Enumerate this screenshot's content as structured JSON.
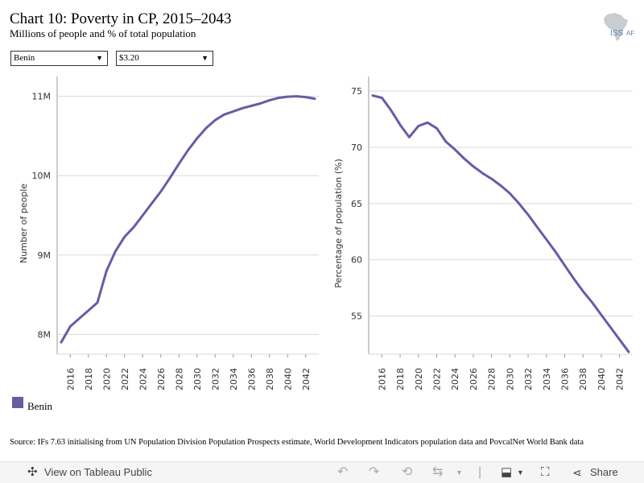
{
  "header": {
    "title": "Chart 10: Poverty in CP, 2015–2043",
    "subtitle": "Millions of people and % of total population"
  },
  "logo": {
    "text": "ISS",
    "suffix": "AF",
    "icon": "africa-map-icon"
  },
  "filters": {
    "country": {
      "selected": "Benin"
    },
    "poverty_line": {
      "selected": "$3.20"
    }
  },
  "colors": {
    "series": "#6b5aa5",
    "axis": "#999999",
    "grid": "#d9d9d9"
  },
  "chart_data": [
    {
      "type": "line",
      "xlabel": "",
      "ylabel": "Number of people",
      "x": [
        2015,
        2016,
        2017,
        2018,
        2019,
        2020,
        2021,
        2022,
        2023,
        2024,
        2025,
        2026,
        2027,
        2028,
        2029,
        2030,
        2031,
        2032,
        2033,
        2034,
        2035,
        2036,
        2037,
        2038,
        2039,
        2040,
        2041,
        2042,
        2043
      ],
      "xticks": [
        "2016",
        "2018",
        "2020",
        "2022",
        "2024",
        "2026",
        "2028",
        "2030",
        "2032",
        "2034",
        "2036",
        "2038",
        "2040",
        "2042"
      ],
      "yticks": [
        {
          "value": 8,
          "label": "8M"
        },
        {
          "value": 9,
          "label": "9M"
        },
        {
          "value": 10,
          "label": "10M"
        },
        {
          "value": 11,
          "label": "11M"
        }
      ],
      "ylim": [
        7.75,
        11.25
      ],
      "series": [
        {
          "name": "Benin",
          "values": [
            7.9,
            8.1,
            8.2,
            8.3,
            8.4,
            8.8,
            9.05,
            9.23,
            9.35,
            9.5,
            9.65,
            9.8,
            9.97,
            10.15,
            10.32,
            10.47,
            10.6,
            10.7,
            10.77,
            10.81,
            10.85,
            10.88,
            10.91,
            10.95,
            10.98,
            10.995,
            11.0,
            10.99,
            10.97
          ]
        }
      ]
    },
    {
      "type": "line",
      "xlabel": "",
      "ylabel": "Percentage of population (%)",
      "x": [
        2015,
        2016,
        2017,
        2018,
        2019,
        2020,
        2021,
        2022,
        2023,
        2024,
        2025,
        2026,
        2027,
        2028,
        2029,
        2030,
        2031,
        2032,
        2033,
        2034,
        2035,
        2036,
        2037,
        2038,
        2039,
        2040,
        2041,
        2042,
        2043
      ],
      "xticks": [
        "2016",
        "2018",
        "2020",
        "2022",
        "2024",
        "2026",
        "2028",
        "2030",
        "2032",
        "2034",
        "2036",
        "2038",
        "2040",
        "2042"
      ],
      "yticks": [
        {
          "value": 55,
          "label": "55"
        },
        {
          "value": 60,
          "label": "60"
        },
        {
          "value": 65,
          "label": "65"
        },
        {
          "value": 70,
          "label": "70"
        },
        {
          "value": 75,
          "label": "75"
        }
      ],
      "ylim": [
        51.6,
        76.3
      ],
      "series": [
        {
          "name": "Benin",
          "values": [
            74.6,
            74.4,
            73.3,
            72.0,
            70.9,
            71.9,
            72.2,
            71.7,
            70.5,
            69.8,
            69.0,
            68.3,
            67.7,
            67.2,
            66.6,
            65.9,
            65.0,
            64.0,
            62.9,
            61.8,
            60.7,
            59.5,
            58.3,
            57.2,
            56.2,
            55.1,
            54.0,
            52.9,
            51.8
          ]
        }
      ]
    }
  ],
  "legend": {
    "items": [
      {
        "label": "Benin"
      }
    ]
  },
  "source": "Source: IFs 7.63 initialising from UN Population Division Population Prospects estimate, World Development Indicators population data and PovcalNet World Bank data",
  "toolbar": {
    "view_label": "View on Tableau Public",
    "share_label": "Share"
  }
}
